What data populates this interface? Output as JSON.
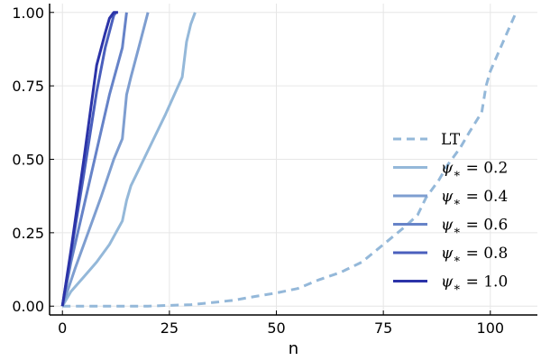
{
  "chart_data": {
    "type": "line",
    "xlabel": "n",
    "ylabel": "",
    "title": "",
    "xlim": [
      -3,
      111
    ],
    "ylim": [
      -0.03,
      1.03
    ],
    "x_ticks": [
      0,
      25,
      50,
      75,
      100
    ],
    "y_ticks": [
      0.0,
      0.25,
      0.5,
      0.75,
      1.0
    ],
    "x_tick_labels": [
      "0",
      "25",
      "50",
      "75",
      "100"
    ],
    "y_tick_labels": [
      "0.00",
      "0.25",
      "0.50",
      "0.75",
      "1.00"
    ],
    "grid": true,
    "legend_position": "right",
    "series": [
      {
        "name": "LT",
        "legend_parts": [
          "LT"
        ],
        "color": "#94b8d9",
        "dashed": true,
        "x": [
          0,
          10,
          20,
          30,
          35,
          40,
          45,
          50,
          55,
          60,
          65,
          70,
          75,
          80,
          83,
          85,
          88,
          90,
          93,
          95,
          98,
          99,
          100,
          103,
          106
        ],
        "y": [
          0,
          0,
          0,
          0.005,
          0.012,
          0.02,
          0.033,
          0.045,
          0.06,
          0.09,
          0.115,
          0.15,
          0.21,
          0.27,
          0.31,
          0.37,
          0.43,
          0.48,
          0.54,
          0.59,
          0.66,
          0.75,
          0.8,
          0.9,
          1.0
        ]
      },
      {
        "name": "ψ* = 0.2",
        "legend_parts": [
          "ψ",
          "∗",
          " = 0.2"
        ],
        "color": "#94b8d9",
        "dashed": false,
        "x": [
          0,
          2,
          5,
          8,
          11,
          14,
          15,
          16,
          18,
          21,
          24,
          28,
          29,
          30,
          31
        ],
        "y": [
          0,
          0.05,
          0.1,
          0.15,
          0.21,
          0.29,
          0.36,
          0.41,
          0.47,
          0.56,
          0.65,
          0.78,
          0.9,
          0.96,
          1.0
        ]
      },
      {
        "name": "ψ* = 0.4",
        "legend_parts": [
          "ψ",
          "∗",
          " = 0.4"
        ],
        "color": "#7e9ed0",
        "dashed": false,
        "x": [
          0,
          3,
          6,
          9,
          12,
          14,
          15,
          16,
          18,
          20
        ],
        "y": [
          0,
          0.13,
          0.25,
          0.37,
          0.5,
          0.57,
          0.72,
          0.78,
          0.89,
          1.0
        ]
      },
      {
        "name": "ψ* = 0.6",
        "legend_parts": [
          "ψ",
          "∗",
          " = 0.6"
        ],
        "color": "#6683c8",
        "dashed": false,
        "x": [
          0,
          2,
          5,
          8,
          11,
          14,
          15
        ],
        "y": [
          0,
          0.15,
          0.34,
          0.53,
          0.72,
          0.88,
          1.0
        ]
      },
      {
        "name": "ψ* = 0.8",
        "legend_parts": [
          "ψ",
          "∗",
          " = 0.8"
        ],
        "color": "#4a5fbd",
        "dashed": false,
        "x": [
          0,
          2,
          5,
          8,
          10,
          12,
          12.5
        ],
        "y": [
          0,
          0.18,
          0.45,
          0.73,
          0.88,
          0.99,
          1.0
        ]
      },
      {
        "name": "ψ* = 1.0",
        "legend_parts": [
          "ψ",
          "∗",
          " = 1.0"
        ],
        "color": "#2b33a8",
        "dashed": false,
        "x": [
          0,
          2,
          5,
          8,
          10,
          11,
          12,
          13
        ],
        "y": [
          0,
          0.19,
          0.5,
          0.82,
          0.93,
          0.98,
          1.0,
          1.0
        ]
      }
    ]
  }
}
